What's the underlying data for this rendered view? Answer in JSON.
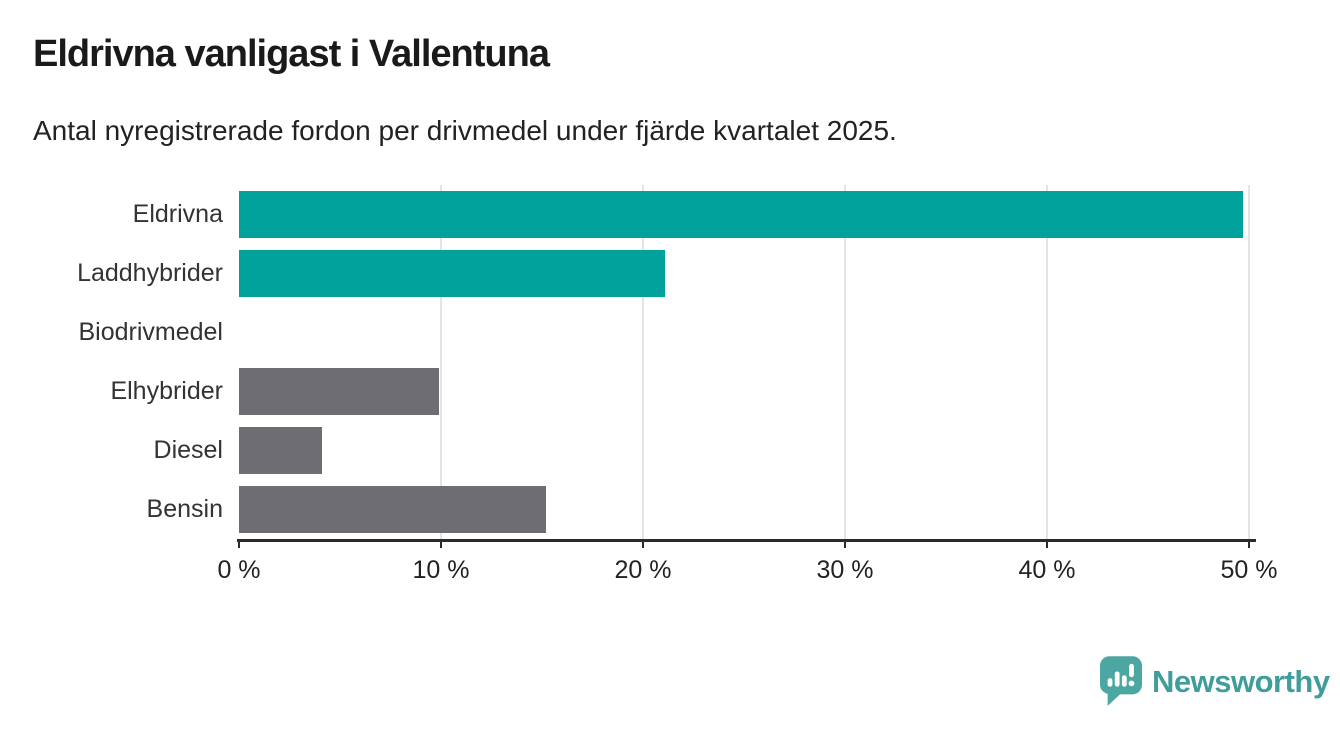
{
  "chart_data": {
    "type": "bar",
    "orientation": "horizontal",
    "title": "Eldrivna vanligast i Vallentuna",
    "subtitle": "Antal nyregistrerade fordon per drivmedel under fjärde kvartalet 2025.",
    "categories": [
      "Eldrivna",
      "Laddhybrider",
      "Biodrivmedel",
      "Elhybrider",
      "Diesel",
      "Bensin"
    ],
    "values": [
      49.7,
      21.1,
      0,
      9.9,
      4.1,
      15.2
    ],
    "unit": "%",
    "xlim": [
      0,
      50
    ],
    "x_tick_values": [
      0,
      10,
      20,
      30,
      40,
      50
    ],
    "x_tick_labels": [
      "0 %",
      "10 %",
      "20 %",
      "30 %",
      "40 %",
      "50 %"
    ],
    "bar_colors": [
      "#00a29b",
      "#00a29b",
      "#6d6d72",
      "#6d6d72",
      "#6d6d72",
      "#6d6d72"
    ],
    "highlight_color": "#00a29b",
    "default_color": "#6d6d72",
    "grid": true,
    "legend": "none"
  },
  "footer": {
    "brand": "Newsworthy",
    "brand_color": "#3f9d9b",
    "icon_color": "#4ca7a3"
  }
}
